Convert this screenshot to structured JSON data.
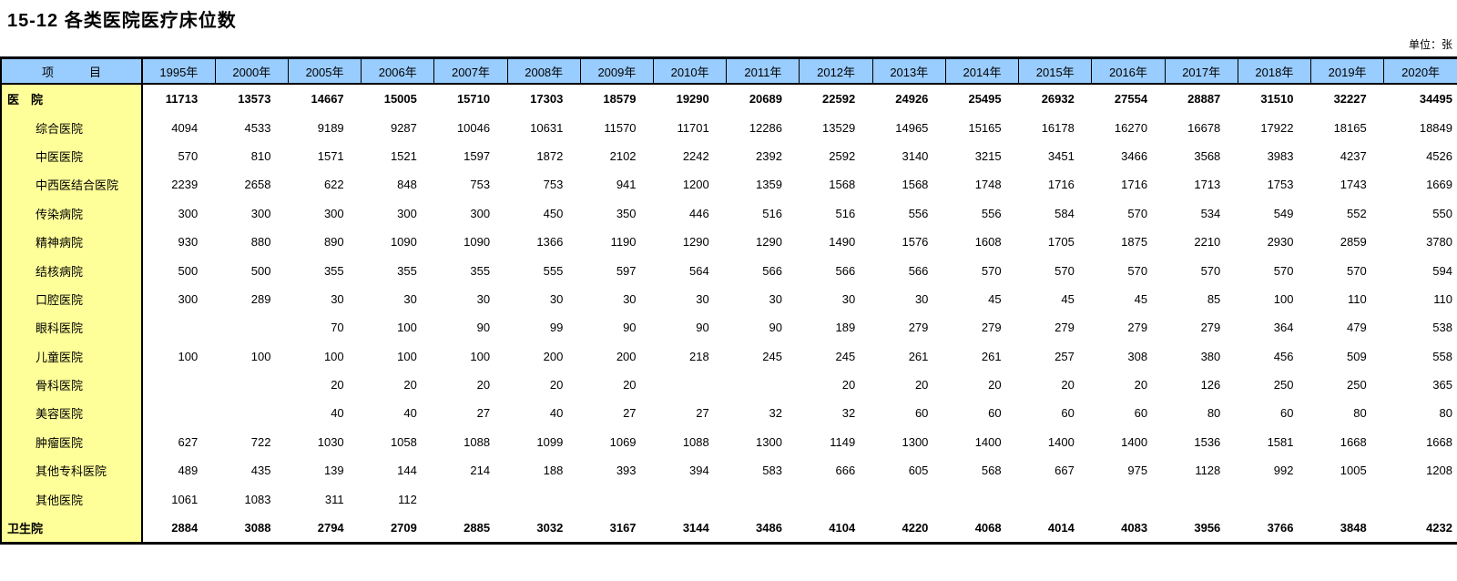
{
  "page": {
    "title": "15-12 各类医院医疗床位数",
    "unit_note": "单位：张"
  },
  "colors": {
    "header_bg": "#99ccff",
    "label_bg": "#ffff99",
    "border": "#000000"
  },
  "table": {
    "item_header": "项　　　目",
    "years": [
      "1995年",
      "2000年",
      "2005年",
      "2006年",
      "2007年",
      "2008年",
      "2009年",
      "2010年",
      "2011年",
      "2012年",
      "2013年",
      "2014年",
      "2015年",
      "2016年",
      "2017年",
      "2018年",
      "2019年",
      "2020年"
    ],
    "rows": [
      {
        "label": "医　院",
        "bold": true,
        "indent": false,
        "values": [
          11713,
          13573,
          14667,
          15005,
          15710,
          17303,
          18579,
          19290,
          20689,
          22592,
          24926,
          25495,
          26932,
          27554,
          28887,
          31510,
          32227,
          34495
        ]
      },
      {
        "label": "综合医院",
        "bold": false,
        "indent": true,
        "values": [
          4094,
          4533,
          9189,
          9287,
          10046,
          10631,
          11570,
          11701,
          12286,
          13529,
          14965,
          15165,
          16178,
          16270,
          16678,
          17922,
          18165,
          18849
        ]
      },
      {
        "label": "中医医院",
        "bold": false,
        "indent": true,
        "values": [
          570,
          810,
          1571,
          1521,
          1597,
          1872,
          2102,
          2242,
          2392,
          2592,
          3140,
          3215,
          3451,
          3466,
          3568,
          3983,
          4237,
          4526
        ]
      },
      {
        "label": "中西医结合医院",
        "bold": false,
        "indent": true,
        "values": [
          2239,
          2658,
          622,
          848,
          753,
          753,
          941,
          1200,
          1359,
          1568,
          1568,
          1748,
          1716,
          1716,
          1713,
          1753,
          1743,
          1669
        ]
      },
      {
        "label": "传染病院",
        "bold": false,
        "indent": true,
        "values": [
          300,
          300,
          300,
          300,
          300,
          450,
          350,
          446,
          516,
          516,
          556,
          556,
          584,
          570,
          534,
          549,
          552,
          550
        ]
      },
      {
        "label": "精神病院",
        "bold": false,
        "indent": true,
        "values": [
          930,
          880,
          890,
          1090,
          1090,
          1366,
          1190,
          1290,
          1290,
          1490,
          1576,
          1608,
          1705,
          1875,
          2210,
          2930,
          2859,
          3780
        ]
      },
      {
        "label": "结核病院",
        "bold": false,
        "indent": true,
        "values": [
          500,
          500,
          355,
          355,
          355,
          555,
          597,
          564,
          566,
          566,
          566,
          570,
          570,
          570,
          570,
          570,
          570,
          594
        ]
      },
      {
        "label": "口腔医院",
        "bold": false,
        "indent": true,
        "values": [
          300,
          289,
          30,
          30,
          30,
          30,
          30,
          30,
          30,
          30,
          30,
          45,
          45,
          45,
          85,
          100,
          110,
          110
        ]
      },
      {
        "label": "眼科医院",
        "bold": false,
        "indent": true,
        "values": [
          "",
          "",
          70,
          100,
          90,
          99,
          90,
          90,
          90,
          189,
          279,
          279,
          279,
          279,
          279,
          364,
          479,
          538
        ]
      },
      {
        "label": "儿童医院",
        "bold": false,
        "indent": true,
        "values": [
          100,
          100,
          100,
          100,
          100,
          200,
          200,
          218,
          245,
          245,
          261,
          261,
          257,
          308,
          380,
          456,
          509,
          558
        ]
      },
      {
        "label": "骨科医院",
        "bold": false,
        "indent": true,
        "values": [
          "",
          "",
          20,
          20,
          20,
          20,
          20,
          "",
          "",
          20,
          20,
          20,
          20,
          20,
          126,
          250,
          250,
          365
        ]
      },
      {
        "label": "美容医院",
        "bold": false,
        "indent": true,
        "values": [
          "",
          "",
          40,
          40,
          27,
          40,
          27,
          27,
          32,
          32,
          60,
          60,
          60,
          60,
          80,
          60,
          80,
          80
        ]
      },
      {
        "label": "肿瘤医院",
        "bold": false,
        "indent": true,
        "values": [
          627,
          722,
          1030,
          1058,
          1088,
          1099,
          1069,
          1088,
          1300,
          1149,
          1300,
          1400,
          1400,
          1400,
          1536,
          1581,
          1668,
          1668
        ]
      },
      {
        "label": "其他专科医院",
        "bold": false,
        "indent": true,
        "values": [
          489,
          435,
          139,
          144,
          214,
          188,
          393,
          394,
          583,
          666,
          605,
          568,
          667,
          975,
          1128,
          992,
          1005,
          1208
        ]
      },
      {
        "label": "其他医院",
        "bold": false,
        "indent": true,
        "values": [
          1061,
          1083,
          311,
          112,
          "",
          "",
          "",
          "",
          "",
          "",
          "",
          "",
          "",
          "",
          "",
          "",
          "",
          ""
        ]
      },
      {
        "label": "卫生院",
        "bold": true,
        "indent": false,
        "values": [
          2884,
          3088,
          2794,
          2709,
          2885,
          3032,
          3167,
          3144,
          3486,
          4104,
          4220,
          4068,
          4014,
          4083,
          3956,
          3766,
          3848,
          4232
        ]
      }
    ]
  }
}
